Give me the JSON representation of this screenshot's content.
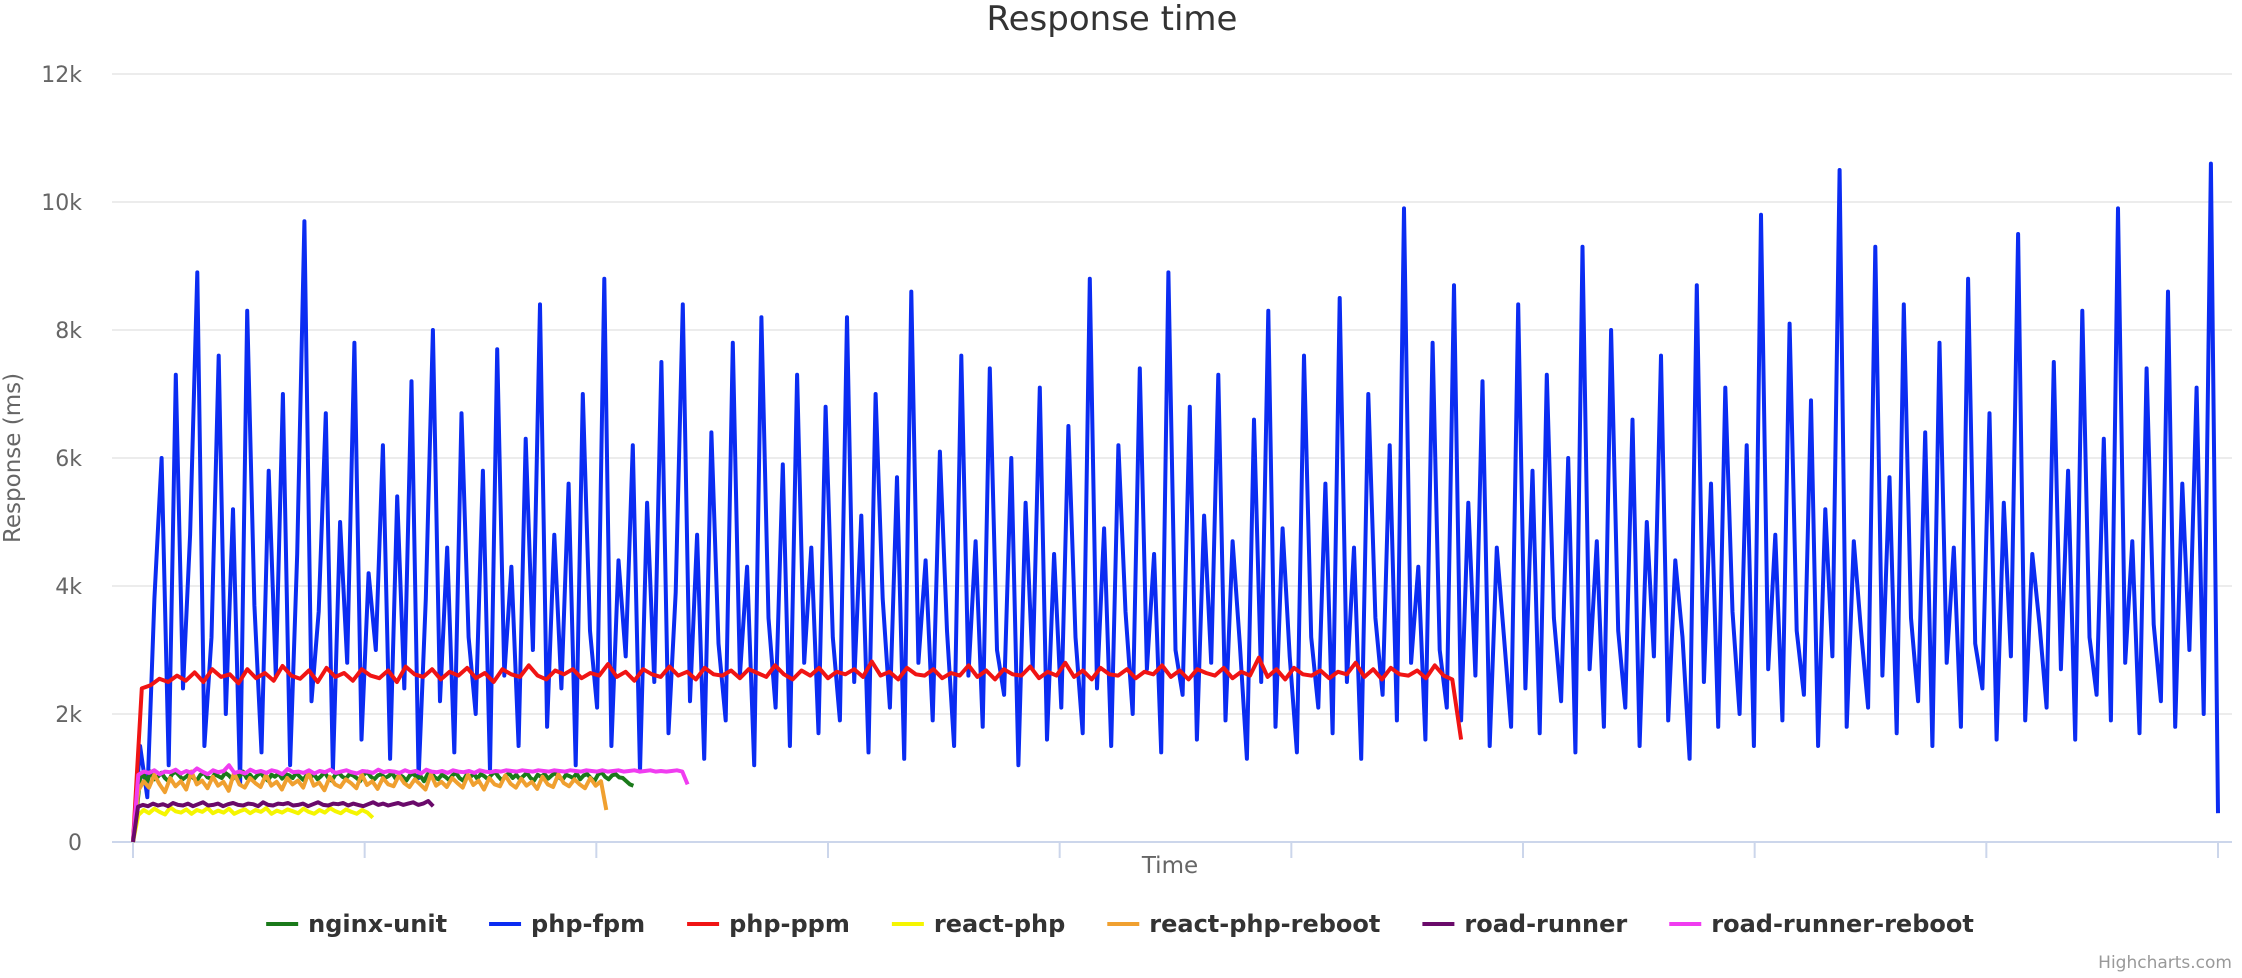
{
  "chart_data": {
    "type": "line",
    "title": "Response time",
    "xlabel": "Time",
    "ylabel": "Response (ms)",
    "ylim": [
      0,
      12000
    ],
    "yticks": [
      "0",
      "2k",
      "4k",
      "6k",
      "8k",
      "10k",
      "12k"
    ],
    "x_tick_labels_shown": false,
    "grid": true,
    "legend": "bottom-center",
    "credits": "Highcharts.com",
    "series": [
      {
        "name": "nginx-unit",
        "color": "#1a7a1a",
        "start": 0,
        "values": [
          0,
          450,
          1000,
          1050,
          950,
          1100,
          980,
          1020,
          1080,
          1000,
          950,
          1060,
          1100,
          1040,
          980,
          1020,
          1070,
          1000,
          960,
          1050,
          1080,
          1010,
          990,
          1060,
          1030,
          1000,
          1080,
          1040,
          980,
          1060,
          1020,
          1100,
          1000,
          1050,
          980,
          1040,
          1080,
          1010,
          960,
          1050,
          1020,
          1070,
          990,
          1060,
          1040,
          1000,
          1080,
          1020,
          970,
          1050,
          1010,
          1060,
          980,
          1030,
          1090,
          1000,
          960,
          1050,
          1080,
          1020,
          990,
          1060,
          1040,
          1000,
          950,
          1050,
          1100,
          1020,
          980,
          1040,
          1060,
          1000,
          1030,
          1080,
          990,
          1050,
          1020,
          960,
          1040,
          1070,
          1000,
          1030,
          950,
          1060,
          1100,
          1010,
          980,
          1050,
          1020,
          970,
          1040,
          1080,
          1000,
          960,
          1050,
          1010,
          1070,
          990,
          1060,
          1030,
          980,
          1050,
          1100,
          1020,
          960,
          1040,
          1070,
          1000,
          1050,
          980,
          1030,
          1080,
          1000,
          960,
          1050,
          1020,
          1060,
          990,
          1040,
          1080,
          1010,
          970,
          1050,
          1030,
          1000,
          1070,
          980,
          1040,
          1060,
          1000,
          950,
          1050,
          1090,
          1020,
          980,
          1040,
          1060,
          1010,
          1000,
          950,
          900,
          880
        ]
      },
      {
        "name": "php-fpm",
        "color": "#0b2cf2",
        "start": 0,
        "values": [
          0,
          1500,
          700,
          3800,
          6000,
          1200,
          7300,
          2400,
          4800,
          8900,
          1500,
          3200,
          7600,
          2000,
          5200,
          900,
          8300,
          3700,
          1400,
          5800,
          2600,
          7000,
          1200,
          4500,
          9700,
          2200,
          3600,
          6700,
          1100,
          5000,
          2800,
          7800,
          1600,
          4200,
          3000,
          6200,
          1300,
          5400,
          2400,
          7200,
          1000,
          3800,
          8000,
          2200,
          4600,
          1400,
          6700,
          3200,
          2000,
          5800,
          1100,
          7700,
          2600,
          4300,
          1500,
          6300,
          3000,
          8400,
          1800,
          4800,
          2400,
          5600,
          1200,
          7000,
          3300,
          2100,
          8800,
          1500,
          4400,
          2900,
          6200,
          1100,
          5300,
          2500,
          7500,
          1700,
          3900,
          8400,
          2200,
          4800,
          1300,
          6400,
          3100,
          1900,
          7800,
          2600,
          4300,
          1200,
          8200,
          3500,
          2100,
          5900,
          1500,
          7300,
          2800,
          4600,
          1700,
          6800,
          3200,
          1900,
          8200,
          2500,
          5100,
          1400,
          7000,
          3800,
          2100,
          5700,
          1300,
          8600,
          2800,
          4400,
          1900,
          6100,
          3300,
          1500,
          7600,
          2600,
          4700,
          1800,
          7400,
          3000,
          2300,
          6000,
          1200,
          5300,
          2700,
          7100,
          1600,
          4500,
          2100,
          6500,
          3200,
          1700,
          8800,
          2400,
          4900,
          1500,
          6200,
          3600,
          2000,
          7400,
          2700,
          4500,
          1400,
          8900,
          3000,
          2300,
          6800,
          1600,
          5100,
          2800,
          7300,
          1900,
          4700,
          3100,
          1300,
          6600,
          2500,
          8300,
          1800,
          4900,
          2900,
          1400,
          7600,
          3200,
          2100,
          5600,
          1700,
          8500,
          2500,
          4600,
          1300,
          7000,
          3500,
          2300,
          6200,
          1900,
          9900,
          2800,
          4300,
          1600,
          7800,
          3000,
          2100,
          8700,
          1900,
          5300,
          2600,
          7200,
          1500,
          4600,
          3200,
          1800,
          8400,
          2400,
          5800,
          1700,
          7300,
          3500,
          2200,
          6000,
          1400,
          9300,
          2700,
          4700,
          1800,
          8000,
          3300,
          2100,
          6600,
          1500,
          5000,
          2900,
          7600,
          1900,
          4400,
          3200,
          1300,
          8700,
          2500,
          5600,
          1800,
          7100,
          3600,
          2000,
          6200,
          1500,
          9800,
          2700,
          4800,
          1900,
          8100,
          3300,
          2300,
          6900,
          1500,
          5200,
          2900,
          10500,
          1800,
          4700,
          3300,
          2100,
          9300,
          2600,
          5700,
          1700,
          8400,
          3500,
          2200,
          6400,
          1500,
          7800,
          2800,
          4600,
          1800,
          8800,
          3100,
          2400,
          6700,
          1600,
          5300,
          2900,
          9500,
          1900,
          4500,
          3400,
          2100,
          7500,
          2700,
          5800,
          1600,
          8300,
          3200,
          2300,
          6300,
          1900,
          9900,
          2800,
          4700,
          1700,
          7400,
          3400,
          2200,
          8600,
          1800,
          5600,
          3000,
          7100,
          2000,
          10600,
          450
        ]
      },
      {
        "name": "php-ppm",
        "color": "#f01414",
        "start": 0,
        "values": [
          0,
          2400,
          2450,
          2550,
          2500,
          2600,
          2520,
          2650,
          2500,
          2700,
          2580,
          2620,
          2480,
          2700,
          2560,
          2640,
          2520,
          2750,
          2600,
          2550,
          2680,
          2500,
          2720,
          2580,
          2640,
          2520,
          2700,
          2600,
          2560,
          2680,
          2500,
          2740,
          2620,
          2580,
          2700,
          2540,
          2660,
          2600,
          2720,
          2560,
          2640,
          2500,
          2700,
          2620,
          2580,
          2760,
          2600,
          2540,
          2680,
          2620,
          2700,
          2560,
          2640,
          2600,
          2780,
          2580,
          2660,
          2520,
          2700,
          2620,
          2580,
          2740,
          2600,
          2660,
          2540,
          2720,
          2620,
          2600,
          2680,
          2560,
          2700,
          2640,
          2580,
          2760,
          2620,
          2540,
          2680,
          2600,
          2720,
          2560,
          2660,
          2620,
          2700,
          2580,
          2820,
          2600,
          2660,
          2540,
          2720,
          2620,
          2600,
          2700,
          2560,
          2640,
          2600,
          2760,
          2580,
          2680,
          2540,
          2700,
          2620,
          2600,
          2740,
          2560,
          2660,
          2600,
          2800,
          2580,
          2680,
          2540,
          2720,
          2620,
          2600,
          2700,
          2560,
          2660,
          2620,
          2760,
          2580,
          2680,
          2540,
          2700,
          2640,
          2600,
          2720,
          2560,
          2660,
          2600,
          2880,
          2580,
          2700,
          2540,
          2720,
          2620,
          2600,
          2680,
          2560,
          2660,
          2620,
          2800,
          2580,
          2700,
          2540,
          2720,
          2620,
          2600,
          2680,
          2560,
          2760,
          2600,
          2540,
          1600
        ]
      },
      {
        "name": "react-php",
        "color": "#f5f500",
        "start": 0,
        "values": [
          0,
          420,
          500,
          450,
          520,
          470,
          430,
          540,
          480,
          460,
          510,
          440,
          500,
          470,
          530,
          450,
          490,
          460,
          520,
          440,
          480,
          510,
          450,
          500,
          470,
          530,
          440,
          490,
          460,
          510,
          480,
          450,
          520,
          470,
          440,
          500,
          460,
          530,
          480,
          450,
          510,
          470,
          440,
          500,
          460,
          380
        ]
      },
      {
        "name": "react-php-reboot",
        "color": "#f0a030",
        "start": 0,
        "values": [
          0,
          800,
          950,
          850,
          1050,
          900,
          780,
          1000,
          870,
          950,
          820,
          1100,
          900,
          960,
          840,
          1020,
          880,
          940,
          800,
          1080,
          900,
          850,
          1000,
          920,
          860,
          1050,
          880,
          940,
          820,
          1000,
          900,
          960,
          850,
          1080,
          880,
          930,
          810,
          1020,
          900,
          860,
          980,
          920,
          840,
          1060,
          890,
          950,
          830,
          1000,
          900,
          870,
          1040,
          920,
          860,
          980,
          900,
          820,
          1060,
          880,
          940,
          860,
          1000,
          920,
          850,
          1050,
          890,
          960,
          820,
          1000,
          900,
          870,
          1040,
          910,
          850,
          990,
          880,
          940,
          830,
          1020,
          900,
          860,
          1060,
          920,
          870,
          980,
          900,
          840,
          1000,
          880,
          950,
          500
        ]
      },
      {
        "name": "road-runner",
        "color": "#6a0a6a",
        "start": 0,
        "values": [
          0,
          550,
          580,
          560,
          600,
          570,
          590,
          560,
          610,
          580,
          570,
          600,
          560,
          590,
          620,
          570,
          580,
          600,
          560,
          590,
          610,
          580,
          570,
          600,
          590,
          560,
          620,
          580,
          570,
          600,
          590,
          610,
          570,
          580,
          600,
          560,
          590,
          620,
          580,
          570,
          600,
          590,
          610,
          570,
          600,
          580,
          560,
          590,
          620,
          580,
          600,
          570,
          590,
          610,
          580,
          600,
          620,
          580,
          600,
          640,
          560
        ]
      },
      {
        "name": "road-runner-reboot",
        "color": "#f03cf0",
        "start": 0,
        "values": [
          0,
          1050,
          1100,
          1080,
          1120,
          1060,
          1100,
          1090,
          1130,
          1070,
          1110,
          1080,
          1150,
          1100,
          1060,
          1120,
          1090,
          1110,
          1200,
          1080,
          1100,
          1070,
          1130,
          1090,
          1110,
          1080,
          1120,
          1100,
          1060,
          1140,
          1090,
          1100,
          1080,
          1120,
          1070,
          1110,
          1090,
          1130,
          1080,
          1100,
          1120,
          1090,
          1070,
          1110,
          1100,
          1080,
          1130,
          1090,
          1110,
          1100,
          1080,
          1120,
          1090,
          1110,
          1070,
          1130,
          1100,
          1090,
          1110,
          1080,
          1120,
          1100,
          1090,
          1110,
          1080,
          1120,
          1100,
          1090,
          1110,
          1100,
          1120,
          1110,
          1100,
          1120,
          1110,
          1100,
          1120,
          1110,
          1100,
          1120,
          1110,
          1100,
          1120,
          1110,
          1100,
          1120,
          1110,
          1100,
          1120,
          1100,
          1110,
          1120,
          1100,
          1110,
          1120,
          1100,
          1110,
          1120,
          1100,
          1110,
          1100,
          1110,
          1120,
          1100,
          900
        ]
      }
    ],
    "series_x_extent_fraction": {
      "nginx-unit": 0.24,
      "php-fpm": 1.0,
      "php-ppm": 0.637,
      "react-php": 0.115,
      "react-php-reboot": 0.227,
      "road-runner": 0.144,
      "road-runner-reboot": 0.266
    }
  }
}
